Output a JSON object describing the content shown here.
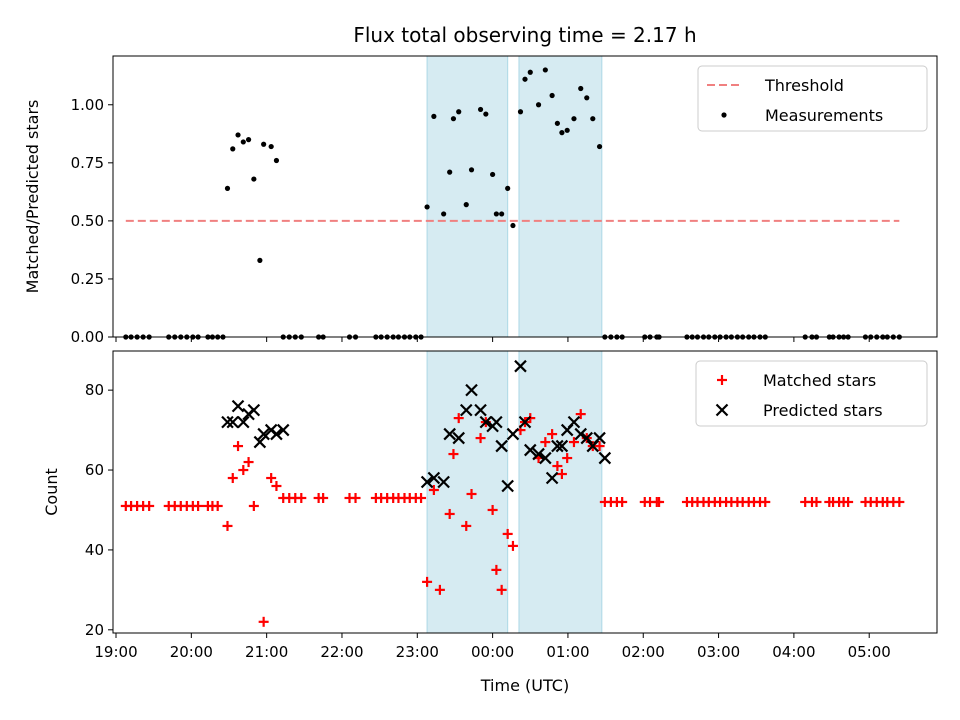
{
  "chart_data": {
    "title": "Flux total observing time = 2.17 h",
    "xlabel": "Time (UTC)",
    "x_tick_labels": [
      "19:00",
      "20:00",
      "21:00",
      "22:00",
      "23:00",
      "00:00",
      "01:00",
      "02:00",
      "03:00",
      "04:00",
      "05:00"
    ],
    "x_tick_hours": [
      19,
      20,
      21,
      22,
      23,
      24,
      25,
      26,
      27,
      28,
      29
    ],
    "xlim": [
      18.96,
      29.9
    ],
    "colors": {
      "threshold": "#f08080",
      "measurement": "#000000",
      "matched": "#ff0000",
      "predicted": "#000000",
      "band": "#add8e6"
    },
    "panels": [
      {
        "type": "scatter",
        "ylabel": "Matched/Predicted stars",
        "ylim": [
          0,
          1.21
        ],
        "y_tick_labels": [
          "0.00",
          "0.25",
          "0.50",
          "0.75",
          "1.00"
        ],
        "y_ticks": [
          0,
          0.25,
          0.5,
          0.75,
          1.0
        ],
        "highlight_bands": [
          [
            23.13,
            24.2
          ],
          [
            24.35,
            25.45
          ]
        ],
        "threshold": {
          "name": "Threshold",
          "value": 0.5,
          "x_range": [
            19.13,
            29.4
          ]
        },
        "legend": {
          "placement": "upper right",
          "entries": [
            "Threshold",
            "Measurements"
          ]
        },
        "series": [
          {
            "name": "Measurements",
            "x": [
              19.13,
              19.2,
              19.28,
              19.36,
              19.44,
              19.7,
              19.78,
              19.86,
              19.94,
              20.02,
              20.09,
              20.22,
              20.28,
              20.35,
              20.42,
              20.48,
              20.55,
              20.62,
              20.69,
              20.76,
              20.83,
              20.91,
              20.96,
              21.06,
              21.13,
              21.22,
              21.3,
              21.38,
              21.46,
              21.69,
              21.75,
              22.1,
              22.18,
              22.45,
              22.52,
              22.6,
              22.68,
              22.75,
              22.83,
              22.9,
              22.98,
              23.05,
              23.13,
              23.22,
              23.35,
              23.43,
              23.48,
              23.55,
              23.65,
              23.72,
              23.84,
              23.91,
              24.0,
              24.05,
              24.12,
              24.2,
              24.27,
              24.37,
              24.43,
              24.5,
              24.61,
              24.7,
              24.79,
              24.86,
              24.92,
              24.99,
              25.08,
              25.17,
              25.25,
              25.33,
              25.42,
              25.49,
              25.57,
              25.65,
              25.72,
              26.02,
              26.09,
              26.18,
              26.21,
              26.58,
              26.65,
              26.72,
              26.8,
              26.87,
              26.95,
              27.02,
              27.1,
              27.17,
              27.25,
              27.32,
              27.4,
              27.47,
              27.55,
              27.62,
              28.15,
              28.24,
              28.3,
              28.47,
              28.52,
              28.6,
              28.66,
              28.72,
              28.95,
              29.02,
              29.1,
              29.18,
              29.24,
              29.32,
              29.4
            ],
            "y": [
              0,
              0,
              0,
              0,
              0,
              0,
              0,
              0,
              0,
              0,
              0,
              0,
              0,
              0,
              0,
              0.64,
              0.81,
              0.87,
              0.84,
              0.85,
              0.68,
              0.33,
              0.83,
              0.82,
              0.76,
              0,
              0,
              0,
              0,
              0,
              0,
              0,
              0,
              0,
              0,
              0,
              0,
              0,
              0,
              0,
              0,
              0,
              0.56,
              0.95,
              0.53,
              0.71,
              0.94,
              0.97,
              0.57,
              0.72,
              0.98,
              0.96,
              0.7,
              0.53,
              0.53,
              0.64,
              0.48,
              0.97,
              1.11,
              1.14,
              1.0,
              1.15,
              1.04,
              0.92,
              0.88,
              0.89,
              0.94,
              1.07,
              1.03,
              0.94,
              0.82,
              0,
              0,
              0,
              0,
              0,
              0,
              0,
              0,
              0,
              0,
              0,
              0,
              0,
              0,
              0,
              0,
              0,
              0,
              0,
              0,
              0,
              0,
              0,
              0,
              0,
              0,
              0,
              0,
              0,
              0,
              0,
              0,
              0,
              0,
              0,
              0,
              0,
              0
            ]
          }
        ]
      },
      {
        "type": "scatter",
        "ylabel": "Count",
        "ylim": [
          19.2,
          89.8
        ],
        "y_tick_labels": [
          "20",
          "40",
          "60",
          "80"
        ],
        "y_ticks": [
          20,
          40,
          60,
          80
        ],
        "highlight_bands": [
          [
            23.13,
            24.2
          ],
          [
            24.35,
            25.45
          ]
        ],
        "legend": {
          "placement": "upper right",
          "entries": [
            "Matched stars",
            "Predicted stars"
          ]
        },
        "series": [
          {
            "name": "Matched stars",
            "marker": "+",
            "x": [
              19.13,
              19.2,
              19.28,
              19.36,
              19.44,
              19.7,
              19.78,
              19.86,
              19.94,
              20.02,
              20.09,
              20.22,
              20.28,
              20.35,
              20.48,
              20.55,
              20.62,
              20.69,
              20.76,
              20.83,
              20.96,
              21.06,
              21.13,
              21.22,
              21.3,
              21.38,
              21.46,
              21.69,
              21.75,
              22.1,
              22.18,
              22.45,
              22.52,
              22.6,
              22.68,
              22.75,
              22.83,
              22.9,
              22.98,
              23.05,
              23.13,
              23.22,
              23.3,
              23.43,
              23.48,
              23.55,
              23.65,
              23.72,
              23.84,
              23.91,
              24.0,
              24.05,
              24.12,
              24.2,
              24.27,
              24.37,
              24.43,
              24.5,
              24.61,
              24.7,
              24.79,
              24.86,
              24.92,
              24.99,
              25.08,
              25.17,
              25.25,
              25.33,
              25.42,
              25.49,
              25.57,
              25.65,
              25.72,
              26.02,
              26.09,
              26.18,
              26.21,
              26.58,
              26.65,
              26.72,
              26.8,
              26.87,
              26.95,
              27.02,
              27.1,
              27.17,
              27.25,
              27.32,
              27.4,
              27.47,
              27.55,
              27.62,
              28.15,
              28.24,
              28.3,
              28.47,
              28.52,
              28.6,
              28.66,
              28.72,
              28.95,
              29.02,
              29.1,
              29.18,
              29.24,
              29.32,
              29.4
            ],
            "y": [
              51,
              51,
              51,
              51,
              51,
              51,
              51,
              51,
              51,
              51,
              51,
              51,
              51,
              51,
              46,
              58,
              66,
              60,
              62,
              51,
              22,
              58,
              56,
              53,
              53,
              53,
              53,
              53,
              53,
              53,
              53,
              53,
              53,
              53,
              53,
              53,
              53,
              53,
              53,
              53,
              32,
              55,
              30,
              49,
              64,
              73,
              46,
              54,
              68,
              72,
              50,
              35,
              30,
              44,
              41,
              70,
              72,
              73,
              63,
              67,
              69,
              61,
              59,
              63,
              67,
              74,
              68,
              66,
              66,
              52,
              52,
              52,
              52,
              52,
              52,
              52,
              52,
              52,
              52,
              52,
              52,
              52,
              52,
              52,
              52,
              52,
              52,
              52,
              52,
              52,
              52,
              52,
              52,
              52,
              52,
              52,
              52,
              52,
              52,
              52,
              52,
              52,
              52,
              52,
              52,
              52,
              52
            ]
          },
          {
            "name": "Predicted stars",
            "marker": "x",
            "x": [
              20.48,
              20.55,
              20.62,
              20.69,
              20.76,
              20.83,
              20.91,
              20.96,
              21.06,
              21.13,
              21.22,
              23.13,
              23.22,
              23.35,
              23.43,
              23.55,
              23.65,
              23.72,
              23.84,
              23.91,
              24.0,
              24.05,
              24.12,
              24.2,
              24.27,
              24.37,
              24.43,
              24.5,
              24.61,
              24.7,
              24.79,
              24.86,
              24.92,
              24.99,
              25.08,
              25.17,
              25.25,
              25.33,
              25.42,
              25.49
            ],
            "y": [
              72,
              72,
              76,
              72,
              74,
              75,
              67,
              69,
              70,
              69,
              70,
              57,
              58,
              57,
              69,
              68,
              75,
              80,
              75,
              72,
              71,
              72,
              66,
              56,
              69,
              86,
              72,
              65,
              64,
              63,
              58,
              66,
              66,
              70,
              72,
              69,
              68,
              66,
              68,
              63
            ]
          }
        ]
      }
    ]
  }
}
